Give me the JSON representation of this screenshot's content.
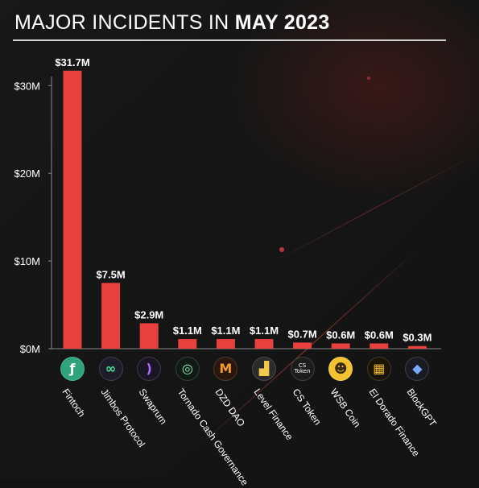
{
  "header": {
    "title_prefix": "MAJOR INCIDENTS IN",
    "title_emphasis": "MAY 2023"
  },
  "colors": {
    "bar": "#e8413d",
    "background": "#131313",
    "axis": "#8a8a8a",
    "text": "#ffffff"
  },
  "chart_data": {
    "type": "bar",
    "title": "MAJOR INCIDENTS IN MAY 2023",
    "xlabel": "",
    "ylabel": "",
    "ylim": [
      0,
      33
    ],
    "yticks": [
      0,
      10,
      20,
      30
    ],
    "ytick_labels": [
      "$0M",
      "$10M",
      "$20M",
      "$30M"
    ],
    "categories": [
      "Fintoch",
      "Jimbos Protocol",
      "Swaprum",
      "Tornado Cash Governance",
      "DZD DAO",
      "Level Finance",
      "CS Token",
      "WSB Coin",
      "El Dorado Finance",
      "BlockGPT"
    ],
    "values": [
      31.7,
      7.5,
      2.9,
      1.1,
      1.1,
      1.1,
      0.7,
      0.6,
      0.6,
      0.3
    ],
    "value_labels": [
      "$31.7M",
      "$7.5M",
      "$2.9M",
      "$1.1M",
      "$1.1M",
      "$1.1M",
      "$0.7M",
      "$0.6M",
      "$0.6M",
      "$0.3M"
    ],
    "grid": false,
    "legend": "none"
  },
  "icons": [
    {
      "name": "fintoch-logo-icon",
      "bg": "#2fa37a",
      "fg": "#ffffff",
      "glyph": "ƒ"
    },
    {
      "name": "jimbos-logo-icon",
      "bg": "#1c1c2a",
      "fg": "#49e39a",
      "glyph": "∞"
    },
    {
      "name": "swaprum-logo-icon",
      "bg": "#1a1424",
      "fg": "#a86bff",
      "glyph": ")"
    },
    {
      "name": "tornado-cash-logo-icon",
      "bg": "#101a14",
      "fg": "#8ef0b8",
      "glyph": "◎"
    },
    {
      "name": "dzd-dao-logo-icon",
      "bg": "#2a160c",
      "fg": "#f29a2e",
      "glyph": "M"
    },
    {
      "name": "level-finance-logo-icon",
      "bg": "#2a2a2a",
      "fg": "#f2c94c",
      "glyph": "▟"
    },
    {
      "name": "cs-token-logo-icon",
      "bg": "#1c1c1c",
      "fg": "#ffffff",
      "glyph": "CS\nToken"
    },
    {
      "name": "wsb-coin-logo-icon",
      "bg": "#f2c230",
      "fg": "#3a2a10",
      "glyph": "☻"
    },
    {
      "name": "el-dorado-logo-icon",
      "bg": "#1a1406",
      "fg": "#f0b429",
      "glyph": "▦"
    },
    {
      "name": "blockgpt-logo-icon",
      "bg": "#1a1a22",
      "fg": "#7aa8ff",
      "glyph": "◆"
    }
  ]
}
